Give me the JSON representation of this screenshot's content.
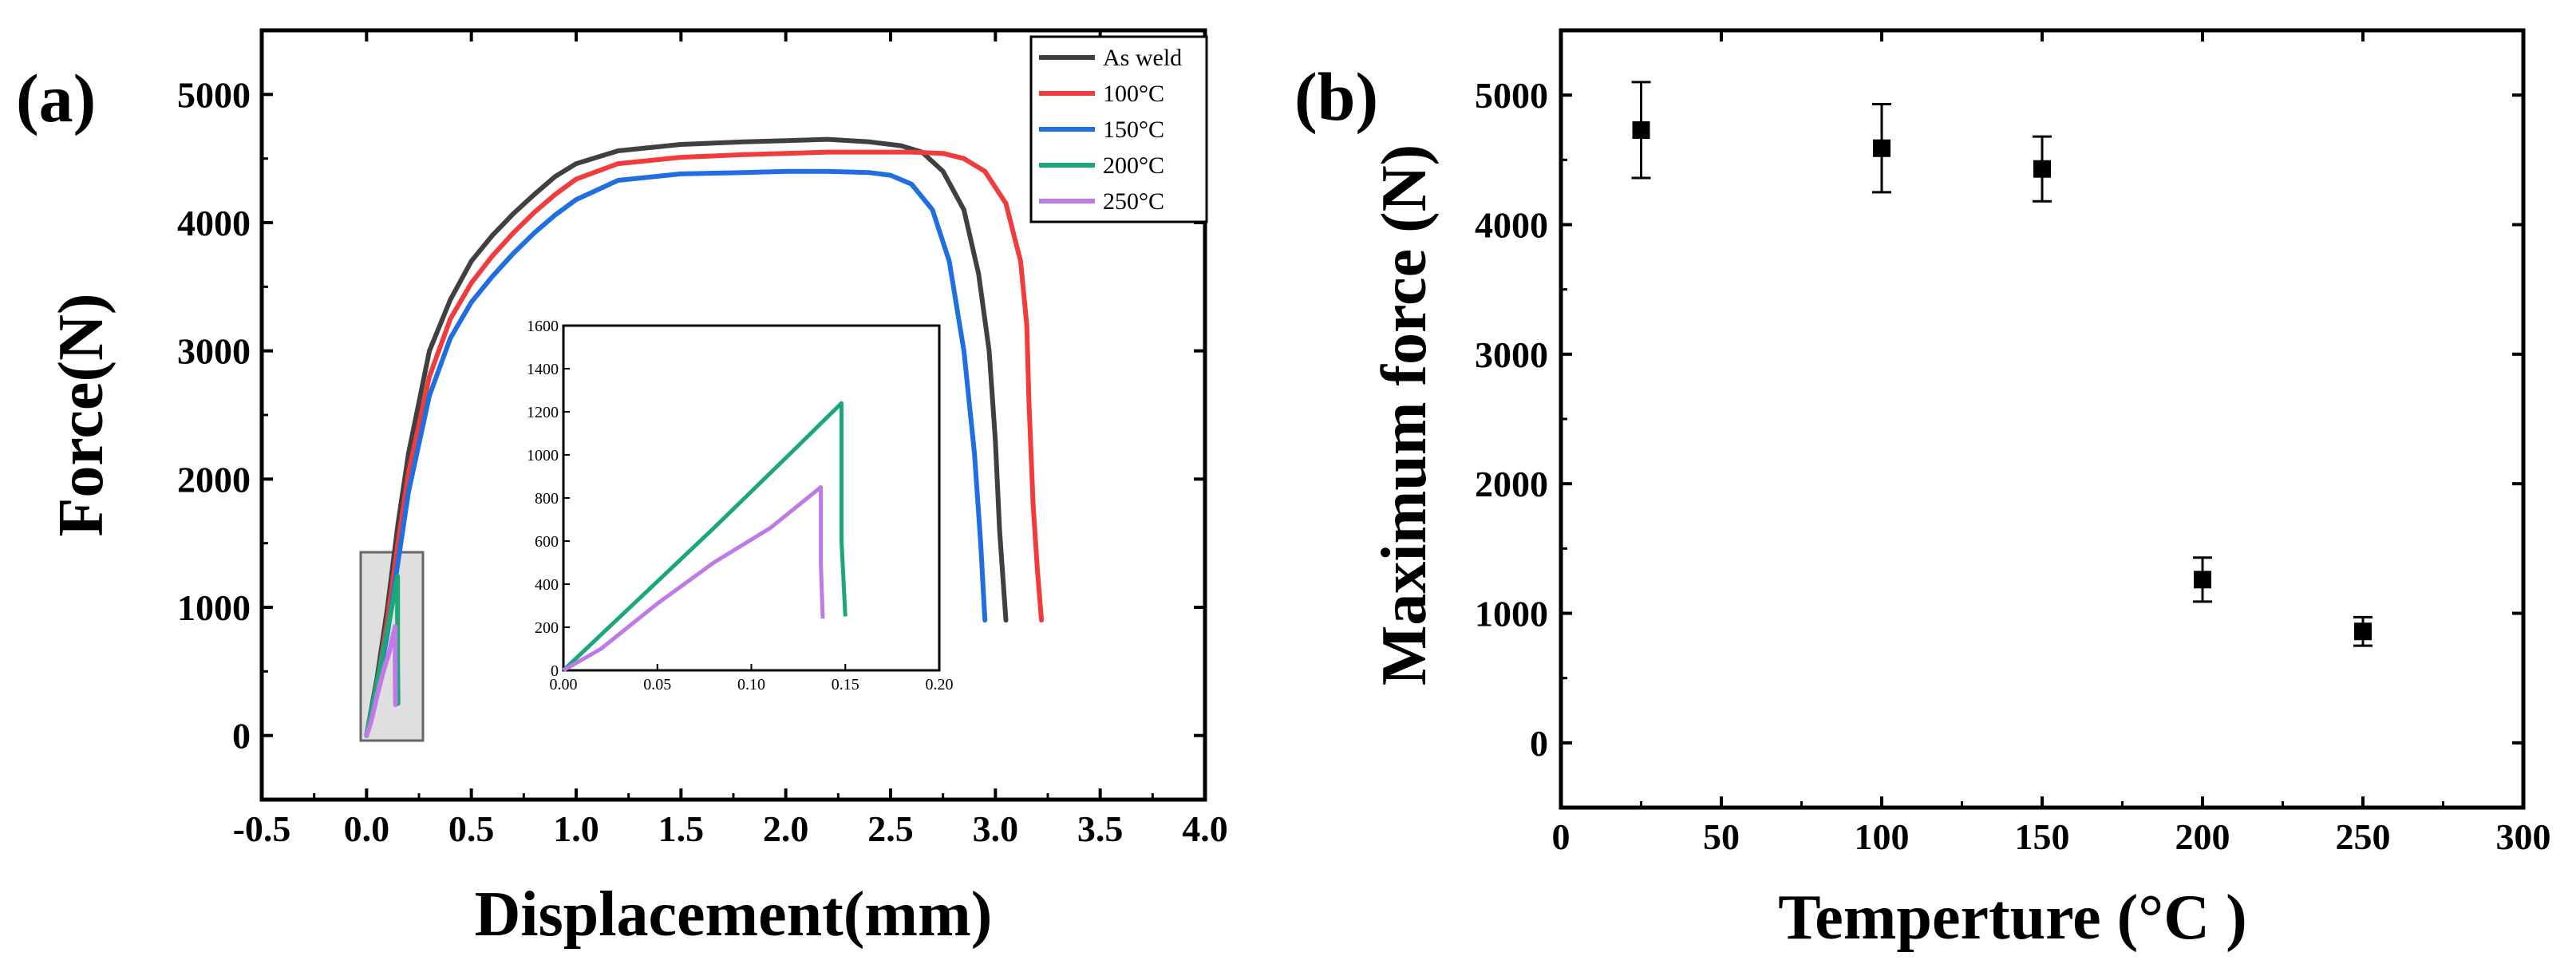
{
  "chart_data": [
    {
      "panel_label": "(a)",
      "type": "line",
      "xlabel": "Displacement(mm)",
      "ylabel": "Force(N)",
      "xlim": [
        -0.5,
        4.0
      ],
      "ylim": [
        -500,
        5500
      ],
      "xticks": [
        "-0.5",
        "0.0",
        "0.5",
        "1.0",
        "1.5",
        "2.0",
        "2.5",
        "3.0",
        "3.5",
        "4.0"
      ],
      "yticks": [
        "0",
        "1000",
        "2000",
        "3000",
        "4000",
        "5000"
      ],
      "legend_position": "top-right",
      "series": [
        {
          "name": "As weld",
          "color": "#404040",
          "x": [
            0.0,
            0.05,
            0.1,
            0.15,
            0.2,
            0.3,
            0.4,
            0.5,
            0.6,
            0.7,
            0.8,
            0.9,
            1.0,
            1.2,
            1.5,
            1.8,
            2.0,
            2.2,
            2.4,
            2.55,
            2.65,
            2.75,
            2.85,
            2.92,
            2.97,
            3.0,
            3.02,
            3.05
          ],
          "y": [
            0,
            450,
            1000,
            1650,
            2200,
            3000,
            3400,
            3700,
            3900,
            4070,
            4220,
            4360,
            4460,
            4560,
            4610,
            4630,
            4640,
            4650,
            4630,
            4600,
            4550,
            4400,
            4100,
            3600,
            3000,
            2300,
            1600,
            900
          ]
        },
        {
          "name": "100°C",
          "color": "#f03c3c",
          "x": [
            0.0,
            0.05,
            0.1,
            0.15,
            0.2,
            0.3,
            0.4,
            0.5,
            0.6,
            0.7,
            0.8,
            0.9,
            1.0,
            1.2,
            1.5,
            1.8,
            2.0,
            2.2,
            2.4,
            2.6,
            2.75,
            2.85,
            2.95,
            3.05,
            3.12,
            3.15,
            3.16,
            3.18,
            3.2,
            3.22
          ],
          "y": [
            0,
            400,
            900,
            1500,
            2050,
            2800,
            3250,
            3530,
            3740,
            3920,
            4080,
            4220,
            4340,
            4460,
            4510,
            4530,
            4540,
            4550,
            4550,
            4550,
            4540,
            4500,
            4400,
            4150,
            3700,
            3200,
            2600,
            1800,
            1300,
            900
          ]
        },
        {
          "name": "150°C",
          "color": "#1f6fe0",
          "x": [
            0.0,
            0.05,
            0.1,
            0.15,
            0.2,
            0.3,
            0.4,
            0.5,
            0.6,
            0.7,
            0.8,
            0.9,
            1.0,
            1.2,
            1.5,
            1.8,
            2.0,
            2.2,
            2.4,
            2.5,
            2.6,
            2.7,
            2.78,
            2.85,
            2.9,
            2.93,
            2.95
          ],
          "y": [
            0,
            350,
            800,
            1350,
            1900,
            2650,
            3100,
            3380,
            3580,
            3760,
            3920,
            4060,
            4180,
            4330,
            4380,
            4390,
            4400,
            4400,
            4390,
            4370,
            4300,
            4100,
            3700,
            3000,
            2200,
            1500,
            900
          ]
        },
        {
          "name": "200°C",
          "color": "#1aa77a",
          "x": [
            0.0,
            0.04,
            0.08,
            0.12,
            0.148,
            0.148,
            0.15
          ],
          "y": [
            0,
            330,
            660,
            1000,
            1240,
            600,
            250
          ]
        },
        {
          "name": "250°C",
          "color": "#c07ae6",
          "x": [
            0.0,
            0.02,
            0.05,
            0.08,
            0.11,
            0.137,
            0.137,
            0.138
          ],
          "y": [
            0,
            100,
            310,
            500,
            660,
            850,
            500,
            240
          ]
        }
      ],
      "inset": {
        "xlim": [
          0.0,
          0.2
        ],
        "ylim": [
          0,
          1600
        ],
        "xticks": [
          "0.00",
          "0.05",
          "0.10",
          "0.15",
          "0.20"
        ],
        "yticks": [
          "0",
          "200",
          "400",
          "600",
          "800",
          "1000",
          "1200",
          "1400",
          "1600"
        ],
        "series_names": [
          "200°C",
          "250°C"
        ]
      }
    },
    {
      "panel_label": "(b)",
      "type": "scatter",
      "xlabel": "Temperture (°C )",
      "ylabel": "Maximum force (N)",
      "xlim": [
        0,
        300
      ],
      "ylim": [
        -500,
        5500
      ],
      "xticks": [
        "0",
        "50",
        "100",
        "150",
        "200",
        "250",
        "300"
      ],
      "yticks": [
        "0",
        "1000",
        "2000",
        "3000",
        "4000",
        "5000"
      ],
      "points": [
        {
          "x": 25,
          "y": 4730,
          "err": 370
        },
        {
          "x": 100,
          "y": 4590,
          "err": 340
        },
        {
          "x": 150,
          "y": 4430,
          "err": 250
        },
        {
          "x": 200,
          "y": 1260,
          "err": 170
        },
        {
          "x": 250,
          "y": 860,
          "err": 110
        }
      ]
    }
  ]
}
